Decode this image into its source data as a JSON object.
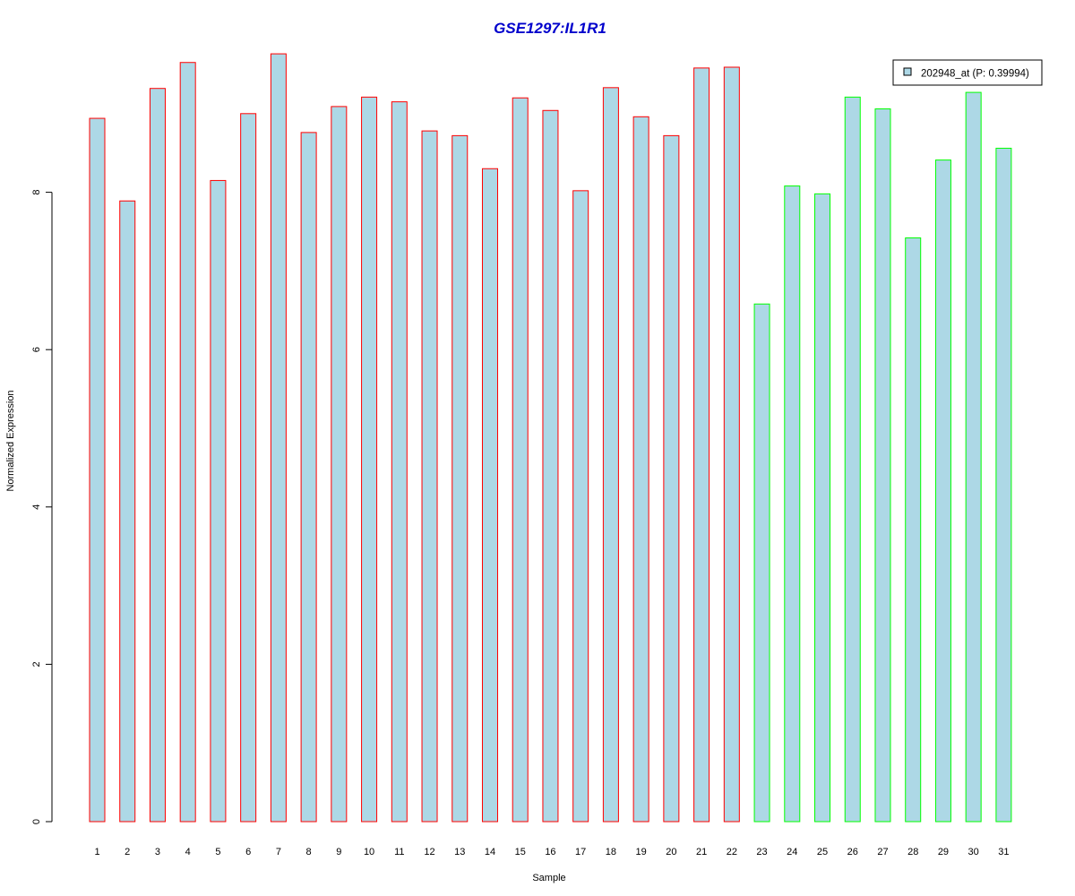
{
  "chart_data": {
    "type": "bar",
    "title": "GSE1297:IL1R1",
    "xlabel": "Sample",
    "ylabel": "Normalized Expression",
    "categories": [
      "1",
      "2",
      "3",
      "4",
      "5",
      "6",
      "7",
      "8",
      "9",
      "10",
      "11",
      "12",
      "13",
      "14",
      "15",
      "16",
      "17",
      "18",
      "19",
      "20",
      "21",
      "22",
      "23",
      "24",
      "25",
      "26",
      "27",
      "28",
      "29",
      "30",
      "31"
    ],
    "values": [
      8.94,
      7.89,
      9.32,
      9.65,
      8.15,
      9.0,
      9.76,
      8.76,
      9.09,
      9.21,
      9.15,
      8.78,
      8.72,
      8.3,
      9.2,
      9.04,
      8.02,
      9.33,
      8.96,
      8.72,
      9.58,
      9.59,
      6.58,
      8.08,
      7.98,
      9.21,
      9.06,
      7.42,
      8.41,
      9.27,
      8.56
    ],
    "groups": [
      1,
      1,
      1,
      1,
      1,
      1,
      1,
      1,
      1,
      1,
      1,
      1,
      1,
      1,
      1,
      1,
      1,
      1,
      1,
      1,
      1,
      1,
      2,
      2,
      2,
      2,
      2,
      2,
      2,
      2,
      2
    ],
    "yticks": [
      "0",
      "2",
      "4",
      "6",
      "8"
    ],
    "ylim": [
      0,
      9.76
    ],
    "legend": {
      "label": "202948_at (P: 0.39994)",
      "position": "top-right"
    },
    "grid": false,
    "colors": {
      "title": "#0000cc",
      "bar_fill": "#add8e6",
      "group1_border": "#ff0000",
      "group2_border": "#00ff00",
      "axis": "#000000"
    }
  }
}
